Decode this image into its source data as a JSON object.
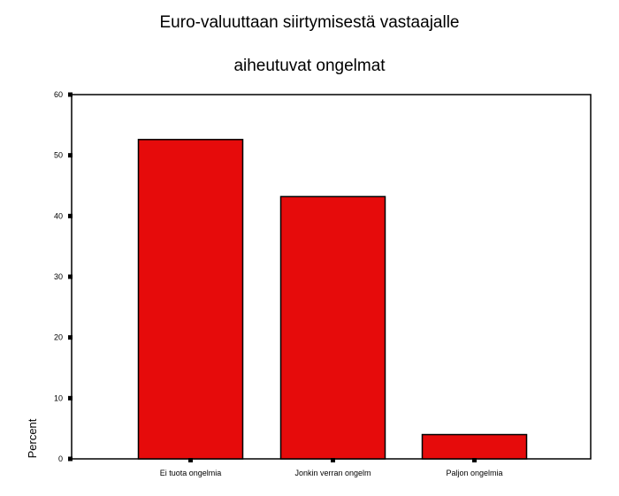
{
  "chart_data": {
    "type": "bar",
    "title_lines": [
      "Euro-valuuttaan siirtymisestä vastaajalle",
      "aiheutuvat ongelmat"
    ],
    "ylabel": "Percent",
    "xlabel": "",
    "categories": [
      "Ei tuota ongelmia",
      "Jonkin verran ongelm",
      "Paljon ongelmia"
    ],
    "values": [
      52.6,
      43.2,
      4.0
    ],
    "ylim": [
      0,
      60
    ],
    "yticks": [
      0,
      10,
      20,
      30,
      40,
      50,
      60
    ],
    "bar_color": "#e60b0b",
    "grid": false,
    "legend": "none"
  }
}
